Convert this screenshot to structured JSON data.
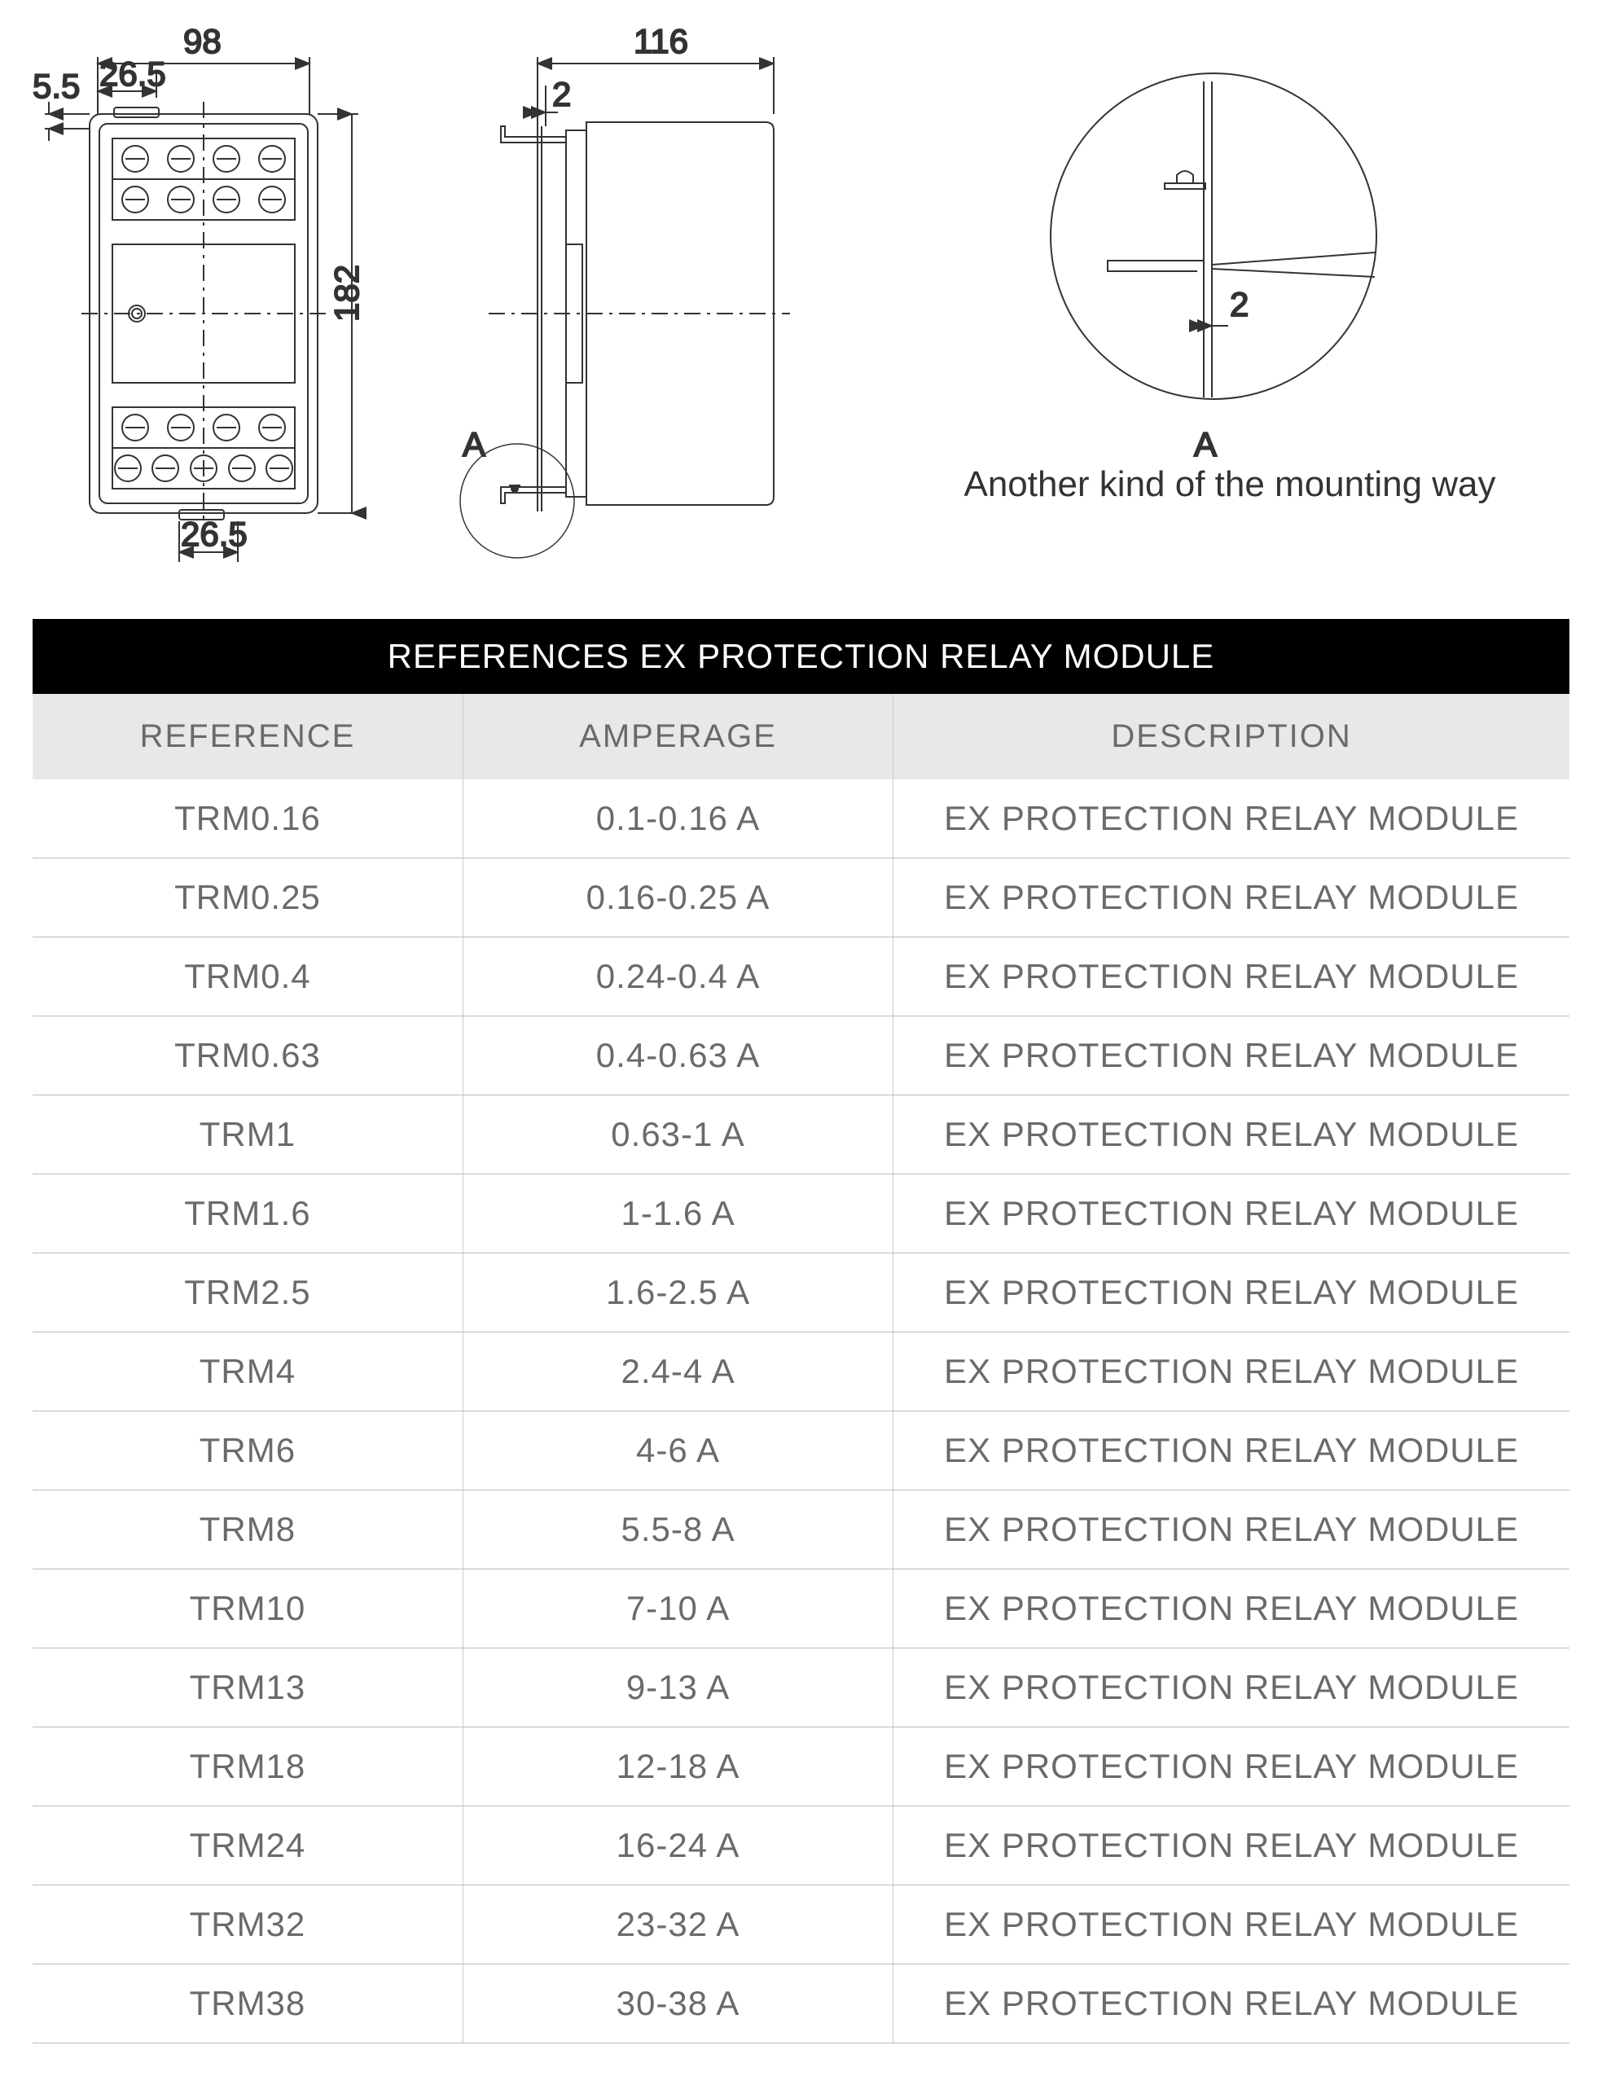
{
  "diagram": {
    "front": {
      "dim_98": "98",
      "dim_26_5_top": "26.5",
      "dim_5_5": "5.5",
      "dim_182": "182",
      "dim_26_5_bottom": "26.5"
    },
    "side": {
      "dim_116": "116",
      "dim_2": "2",
      "label_A": "A"
    },
    "detail": {
      "dim_2": "2",
      "label_A": "A",
      "caption": "Another kind of the mounting way"
    }
  },
  "table": {
    "title": "REFERENCES EX PROTECTION RELAY MODULE",
    "columns": [
      "REFERENCE",
      "AMPERAGE",
      "DESCRIPTION"
    ],
    "column_widths": [
      "28%",
      "28%",
      "44%"
    ],
    "title_bg": "#000000",
    "title_color": "#ffffff",
    "header_bg": "#e8e8e8",
    "header_color": "#6a6a6a",
    "cell_color": "#6a6a6a",
    "border_color": "#bbbbbb",
    "rows": [
      [
        "TRM0.16",
        "0.1-0.16 A",
        "EX PROTECTION RELAY MODULE"
      ],
      [
        "TRM0.25",
        "0.16-0.25 A",
        "EX PROTECTION RELAY MODULE"
      ],
      [
        "TRM0.4",
        "0.24-0.4 A",
        "EX PROTECTION RELAY MODULE"
      ],
      [
        "TRM0.63",
        "0.4-0.63 A",
        "EX PROTECTION RELAY MODULE"
      ],
      [
        "TRM1",
        "0.63-1 A",
        "EX PROTECTION RELAY MODULE"
      ],
      [
        "TRM1.6",
        "1-1.6 A",
        "EX PROTECTION RELAY MODULE"
      ],
      [
        "TRM2.5",
        "1.6-2.5 A",
        "EX PROTECTION RELAY MODULE"
      ],
      [
        "TRM4",
        "2.4-4 A",
        "EX PROTECTION RELAY MODULE"
      ],
      [
        "TRM6",
        "4-6 A",
        "EX PROTECTION RELAY MODULE"
      ],
      [
        "TRM8",
        "5.5-8 A",
        "EX PROTECTION RELAY MODULE"
      ],
      [
        "TRM10",
        "7-10 A",
        "EX PROTECTION RELAY MODULE"
      ],
      [
        "TRM13",
        "9-13 A",
        "EX PROTECTION RELAY MODULE"
      ],
      [
        "TRM18",
        "12-18 A",
        "EX PROTECTION RELAY MODULE"
      ],
      [
        "TRM24",
        "16-24 A",
        "EX PROTECTION RELAY MODULE"
      ],
      [
        "TRM32",
        "23-32 A",
        "EX PROTECTION RELAY MODULE"
      ],
      [
        "TRM38",
        "30-38 A",
        "EX PROTECTION RELAY MODULE"
      ]
    ]
  },
  "styling": {
    "font_family": "Gill Sans",
    "diagram_stroke": "#333333",
    "diagram_stroke_width": 2,
    "dash_pattern": "12 6 3 6"
  }
}
